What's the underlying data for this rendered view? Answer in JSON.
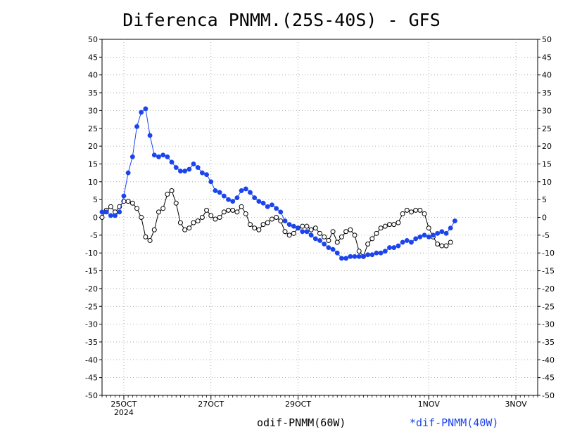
{
  "title": "Diferenca PNMM.(25S-40S) - GFS",
  "chart_data": {
    "type": "line",
    "title": "Diferenca PNMM.(25S-40S) - GFS",
    "xlabel": "",
    "ylabel": "",
    "ylim": [
      -50,
      50
    ],
    "yticks": [
      50,
      45,
      40,
      35,
      30,
      25,
      20,
      15,
      10,
      5,
      0,
      -5,
      -10,
      -15,
      -20,
      -25,
      -30,
      -35,
      -40,
      -45,
      -50
    ],
    "y_axis_both_sides": true,
    "grid": true,
    "x_tick_labels": [
      {
        "label": "25OCT",
        "sub": "2024",
        "index": 5
      },
      {
        "label": "27OCT",
        "index": 25
      },
      {
        "label": "29OCT",
        "index": 45
      },
      {
        "label": "1NOV",
        "index": 75
      },
      {
        "label": "3NOV",
        "index": 95
      }
    ],
    "x_points": 101,
    "legend_placement": "bottom-center",
    "series": [
      {
        "name": "dif-PNMM(60W)",
        "legend_label": "odif-PNMM(60W)",
        "color": "#000000",
        "marker": "open-circle",
        "values": [
          0,
          2,
          3,
          1.5,
          3,
          4.5,
          4.5,
          4,
          2.5,
          0,
          -5.5,
          -6.5,
          -3.5,
          1.5,
          2.5,
          6.5,
          7.5,
          4,
          -1.5,
          -3.5,
          -3,
          -1.5,
          -1,
          0,
          2,
          0.5,
          -0.5,
          0,
          1.5,
          2,
          2,
          1.5,
          3,
          1,
          -2,
          -3,
          -3.5,
          -2,
          -1.5,
          -0.5,
          0,
          -1,
          -4,
          -5,
          -4.5,
          -3,
          -2.5,
          -2.5,
          -3.5,
          -3,
          -4.5,
          -5.5,
          -6.5,
          -4,
          -7,
          -5.5,
          -4,
          -3.5,
          -5,
          -9.5,
          -11,
          -7.5,
          -6,
          -4.5,
          -3,
          -2.5,
          -2,
          -2,
          -1.5,
          1,
          2,
          1.5,
          2,
          2,
          1,
          -3,
          -5.5,
          -7.5,
          -8,
          -8,
          -7
        ]
      },
      {
        "name": "dif-PNMM(40W)",
        "legend_label": "*dif-PNMM(40W)",
        "color": "#1c44ee",
        "marker": "filled-circle",
        "values": [
          1.5,
          1.5,
          0.5,
          0.5,
          1.5,
          6,
          12.5,
          17,
          25.5,
          29.5,
          30.5,
          23,
          17.5,
          17,
          17.5,
          17,
          15.5,
          14,
          13,
          13,
          13.5,
          15,
          14,
          12.5,
          12,
          10,
          7.5,
          7,
          6,
          5,
          4.5,
          5.5,
          7.5,
          8,
          7,
          5.5,
          4.5,
          4,
          3,
          3.5,
          2.5,
          1.5,
          -1,
          -2,
          -2.5,
          -3,
          -4,
          -4,
          -5,
          -6,
          -6.5,
          -7.5,
          -8.5,
          -9,
          -10,
          -11.5,
          -11.5,
          -11,
          -11,
          -11,
          -11,
          -10.5,
          -10.5,
          -10,
          -10,
          -9.5,
          -8.5,
          -8.5,
          -8,
          -7,
          -6.5,
          -7,
          -6,
          -5.5,
          -5,
          -5.5,
          -5,
          -4.5,
          -4,
          -4.5,
          -3,
          -1
        ]
      }
    ]
  }
}
